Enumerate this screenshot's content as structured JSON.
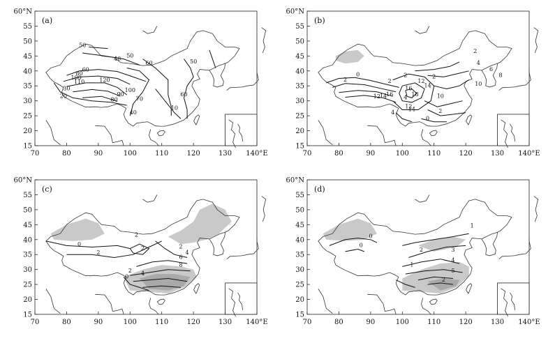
{
  "axes": {
    "y_ticks": [
      "15",
      "20",
      "25",
      "30",
      "35",
      "40",
      "45",
      "50",
      "55",
      "60°N"
    ],
    "x_ticks": [
      "70",
      "80",
      "90",
      "100",
      "110",
      "120",
      "130",
      "140°E"
    ]
  },
  "panels": [
    {
      "label": "(a)",
      "contour_labels": [
        "50",
        "50",
        "40",
        "60",
        "80",
        "100",
        "110",
        "120",
        "100",
        "90",
        "80",
        "70",
        "60",
        "40",
        "30",
        "20",
        "50",
        "60",
        "10"
      ]
    },
    {
      "label": "(b)",
      "contour_labels": [
        "2",
        "0",
        "2",
        "4",
        "6",
        "8",
        "2",
        "2",
        "12",
        "14",
        "16",
        "18",
        "16",
        "14",
        "12",
        "10",
        "4",
        "2",
        "10",
        "12",
        "14",
        "4",
        "2",
        "0"
      ]
    },
    {
      "label": "(c)",
      "contour_labels": [
        "2",
        "0",
        "2",
        "2",
        "4",
        "6",
        "8",
        "2",
        "4",
        "2",
        "0"
      ]
    },
    {
      "label": "(d)",
      "contour_labels": [
        "1",
        "0",
        "0",
        "2",
        "3",
        "4",
        "5",
        "2",
        "1"
      ]
    }
  ]
}
